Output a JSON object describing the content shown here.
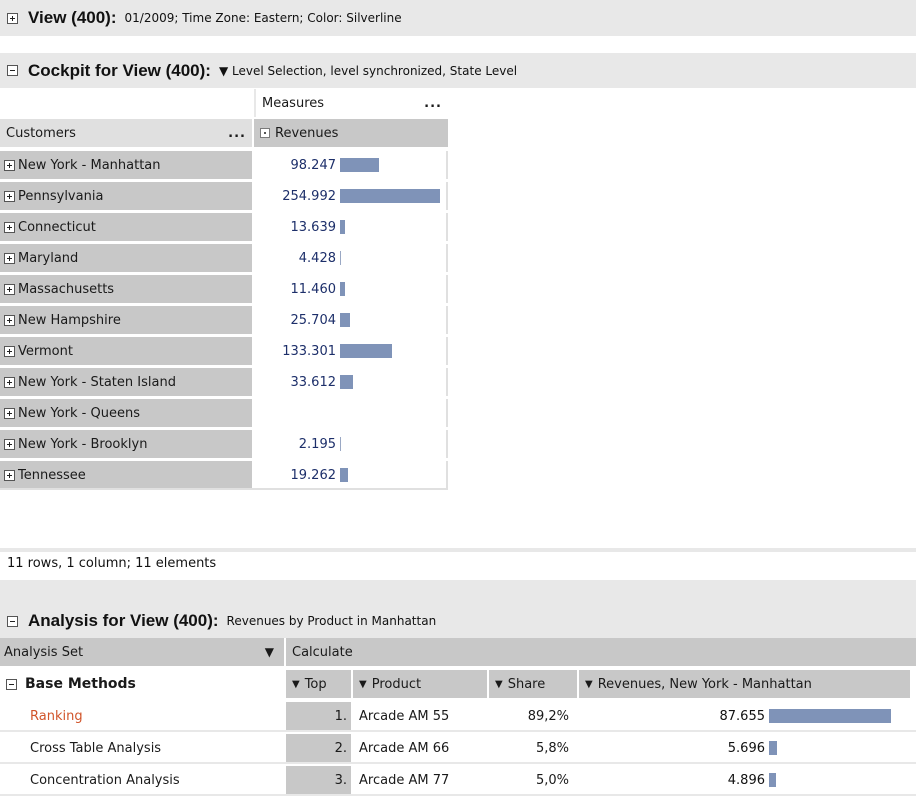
{
  "view_header": {
    "toggle": "+",
    "title": "View (400):",
    "subtitle": "01/2009; Time Zone: Eastern; Color: Silverline"
  },
  "cockpit_header": {
    "toggle": "−",
    "title": "Cockpit for View (400):",
    "subtitle": "▼ Level Selection, level synchronized, State Level"
  },
  "cockpit": {
    "measures_label": "Measures",
    "measures_menu": "...",
    "customers_label": "Customers",
    "customers_menu": "...",
    "revenues_label": "Revenues",
    "bar_color": "#7f93b8",
    "rows": [
      {
        "label": "New York - Manhattan",
        "value": "98.247",
        "bar": 0.385
      },
      {
        "label": "Pennsylvania",
        "value": "254.992",
        "bar": 1.0
      },
      {
        "label": "Connecticut",
        "value": "13.639",
        "bar": 0.053
      },
      {
        "label": "Maryland",
        "value": "4.428",
        "bar": 0.017
      },
      {
        "label": "Massachusetts",
        "value": "11.460",
        "bar": 0.045
      },
      {
        "label": "New Hampshire",
        "value": "25.704",
        "bar": 0.101
      },
      {
        "label": "Vermont",
        "value": "133.301",
        "bar": 0.523
      },
      {
        "label": "New York - Staten Island",
        "value": "33.612",
        "bar": 0.132
      },
      {
        "label": "New York - Queens",
        "value": "",
        "bar": 0
      },
      {
        "label": "New York - Brooklyn",
        "value": "2.195",
        "bar": 0.009
      },
      {
        "label": "Tennessee",
        "value": "19.262",
        "bar": 0.076
      }
    ]
  },
  "status": {
    "text": "11 rows, 1 column; 11 elements"
  },
  "analysis_header": {
    "toggle": "−",
    "title": "Analysis for View (400):",
    "subtitle": "Revenues by Product in Manhattan"
  },
  "analysis": {
    "analysis_set_label": "Analysis Set",
    "calculate_label": "Calculate",
    "base_methods_label": "Base Methods",
    "col_top": "Top",
    "col_product": "Product",
    "col_share": "Share",
    "col_revenues": "Revenues, New York - Manhattan",
    "methods": [
      "Ranking",
      "Cross Table Analysis",
      "Concentration Analysis"
    ],
    "active_method_color": "#d1542a",
    "rows": [
      {
        "rank": "1.",
        "product": "Arcade AM 55",
        "share": "89,2%",
        "revenue": "87.655",
        "bar": 1.0
      },
      {
        "rank": "2.",
        "product": "Arcade AM 66",
        "share": "5,8%",
        "revenue": "5.696",
        "bar": 0.065
      },
      {
        "rank": "3.",
        "product": "Arcade AM 77",
        "share": "5,0%",
        "revenue": "4.896",
        "bar": 0.056
      }
    ]
  }
}
